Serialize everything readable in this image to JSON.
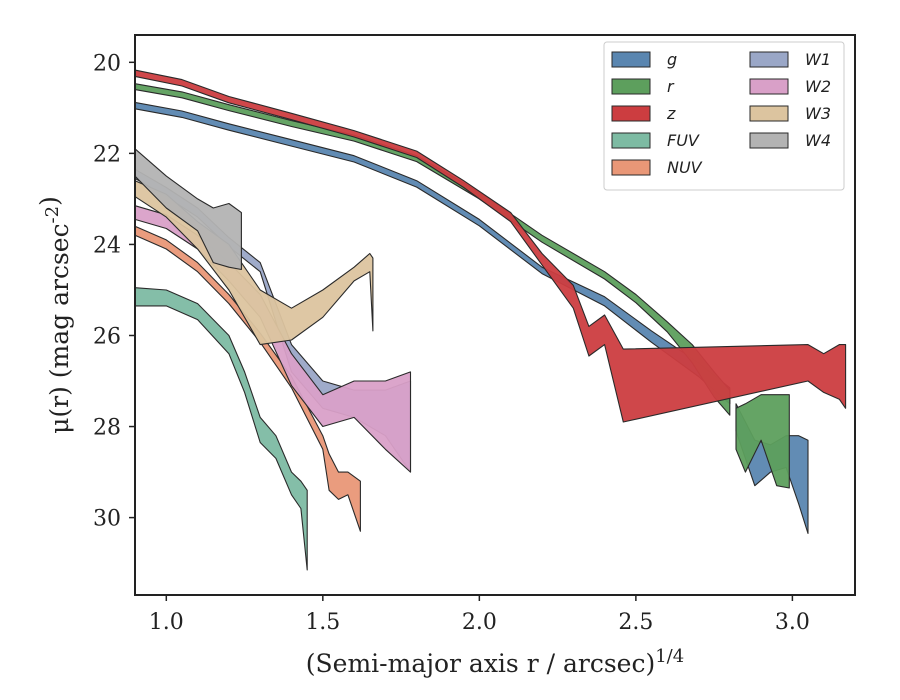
{
  "chart_data": {
    "type": "area",
    "xlabel": "(Semi-major axis r / arcsec)^{1/4}",
    "ylabel": "μ(r) (mag arcsec^{-2})",
    "xlim": [
      0.9,
      3.2
    ],
    "ylim": [
      31.7,
      19.4
    ],
    "y_inverted": true,
    "x_ticks": [
      "1.0",
      "1.5",
      "2.0",
      "2.5",
      "3.0"
    ],
    "y_ticks": [
      "20",
      "22",
      "24",
      "26",
      "28",
      "30"
    ],
    "grid": false,
    "legend": {
      "placement": "top-right",
      "columns": 2
    },
    "series": [
      {
        "name": "g",
        "color": "#5a86b0",
        "bands": [
          [
            [
              0.9,
              20.88,
              21.02
            ],
            [
              1.05,
              21.07,
              21.21
            ],
            [
              1.2,
              21.35,
              21.49
            ],
            [
              1.4,
              21.7,
              21.84
            ],
            [
              1.6,
              22.05,
              22.19
            ],
            [
              1.8,
              22.6,
              22.74
            ],
            [
              2.0,
              23.45,
              23.59
            ],
            [
              2.2,
              24.5,
              24.64
            ],
            [
              2.4,
              25.15,
              25.35
            ],
            [
              2.55,
              25.9,
              26.15
            ],
            [
              2.7,
              26.6,
              26.9
            ],
            [
              2.8,
              27.15,
              27.5
            ]
          ],
          [
            [
              2.82,
              27.5,
              28.1
            ],
            [
              2.88,
              28.3,
              29.3
            ],
            [
              2.93,
              28.4,
              29.0
            ],
            [
              2.98,
              28.2,
              28.9
            ],
            [
              3.02,
              28.2,
              29.7
            ],
            [
              3.05,
              28.3,
              30.35
            ]
          ]
        ]
      },
      {
        "name": "r",
        "color": "#5d9f5d",
        "bands": [
          [
            [
              0.9,
              20.47,
              20.6
            ],
            [
              1.05,
              20.65,
              20.78
            ],
            [
              1.2,
              20.93,
              21.06
            ],
            [
              1.4,
              21.28,
              21.41
            ],
            [
              1.6,
              21.6,
              21.73
            ],
            [
              1.8,
              22.05,
              22.18
            ],
            [
              2.0,
              22.85,
              23.0
            ],
            [
              2.2,
              23.8,
              23.95
            ],
            [
              2.4,
              24.6,
              24.76
            ],
            [
              2.5,
              25.1,
              25.28
            ],
            [
              2.6,
              25.7,
              25.92
            ],
            [
              2.68,
              26.2,
              26.6
            ],
            [
              2.75,
              26.8,
              27.35
            ],
            [
              2.8,
              27.2,
              27.75
            ]
          ],
          [
            [
              2.82,
              27.6,
              28.5
            ],
            [
              2.85,
              27.5,
              29.0
            ],
            [
              2.9,
              27.3,
              28.3
            ],
            [
              2.95,
              27.3,
              29.3
            ],
            [
              2.99,
              27.3,
              29.35
            ]
          ]
        ]
      },
      {
        "name": "z",
        "color": "#cc3d40",
        "bands": [
          [
            [
              0.9,
              20.17,
              20.31
            ],
            [
              1.05,
              20.38,
              20.52
            ],
            [
              1.2,
              20.75,
              20.89
            ],
            [
              1.4,
              21.12,
              21.26
            ],
            [
              1.6,
              21.5,
              21.64
            ],
            [
              1.8,
              21.95,
              22.09
            ],
            [
              1.95,
              22.6,
              22.75
            ],
            [
              2.1,
              23.3,
              23.5
            ],
            [
              2.2,
              24.2,
              24.45
            ],
            [
              2.3,
              24.9,
              25.4
            ],
            [
              2.35,
              25.8,
              26.45
            ],
            [
              2.4,
              25.55,
              26.2
            ],
            [
              2.46,
              26.3,
              27.9
            ],
            [
              3.05,
              26.2,
              27.0
            ],
            [
              3.1,
              26.4,
              27.25
            ],
            [
              3.15,
              26.2,
              27.4
            ],
            [
              3.17,
              26.2,
              27.6
            ]
          ]
        ]
      },
      {
        "name": "FUV",
        "color": "#7dbba3",
        "bands": [
          [
            [
              0.9,
              24.95,
              25.35
            ],
            [
              1.0,
              25.0,
              25.35
            ],
            [
              1.1,
              25.3,
              25.65
            ],
            [
              1.2,
              26.0,
              26.4
            ],
            [
              1.25,
              26.8,
              27.25
            ],
            [
              1.3,
              27.8,
              28.35
            ],
            [
              1.35,
              28.2,
              28.7
            ],
            [
              1.4,
              29.0,
              29.5
            ],
            [
              1.43,
              29.2,
              29.8
            ],
            [
              1.45,
              29.4,
              31.15
            ]
          ]
        ]
      },
      {
        "name": "NUV",
        "color": "#e99777",
        "bands": [
          [
            [
              0.9,
              23.6,
              23.8
            ],
            [
              1.0,
              23.9,
              24.1
            ],
            [
              1.1,
              24.4,
              24.6
            ],
            [
              1.2,
              25.1,
              25.3
            ],
            [
              1.3,
              25.95,
              26.15
            ],
            [
              1.4,
              26.9,
              27.15
            ],
            [
              1.5,
              28.2,
              28.5
            ],
            [
              1.52,
              28.6,
              29.4
            ],
            [
              1.55,
              29.0,
              29.6
            ],
            [
              1.58,
              29.0,
              29.5
            ],
            [
              1.62,
              29.2,
              30.3
            ]
          ]
        ]
      },
      {
        "name": "W1",
        "color": "#9aa7c7",
        "bands": [
          [
            [
              0.9,
              22.35,
              22.55
            ],
            [
              1.0,
              22.75,
              22.95
            ],
            [
              1.1,
              23.2,
              23.4
            ],
            [
              1.2,
              23.85,
              24.05
            ],
            [
              1.3,
              24.4,
              24.6
            ],
            [
              1.4,
              26.2,
              26.8
            ],
            [
              1.5,
              27.0,
              27.6
            ],
            [
              1.6,
              27.2,
              27.8
            ],
            [
              1.7,
              27.2,
              28.2
            ],
            [
              1.78,
              27.0,
              29.0
            ]
          ]
        ]
      },
      {
        "name": "W2",
        "color": "#d9a0c8",
        "bands": [
          [
            [
              0.9,
              23.15,
              23.45
            ],
            [
              1.0,
              23.35,
              23.65
            ],
            [
              1.1,
              23.8,
              24.1
            ],
            [
              1.2,
              24.4,
              24.8
            ],
            [
              1.3,
              25.1,
              25.6
            ],
            [
              1.4,
              26.4,
              27.1
            ],
            [
              1.5,
              27.3,
              28.0
            ],
            [
              1.6,
              27.0,
              27.8
            ],
            [
              1.7,
              27.0,
              28.5
            ],
            [
              1.78,
              26.8,
              29.0
            ]
          ]
        ]
      },
      {
        "name": "W3",
        "color": "#dcc49f",
        "bands": [
          [
            [
              0.9,
              22.6,
              22.95
            ],
            [
              1.0,
              22.9,
              23.4
            ],
            [
              1.1,
              23.5,
              24.1
            ],
            [
              1.2,
              24.0,
              25.0
            ],
            [
              1.3,
              25.0,
              26.2
            ],
            [
              1.4,
              25.4,
              26.1
            ],
            [
              1.5,
              25.0,
              25.6
            ],
            [
              1.6,
              24.5,
              24.8
            ],
            [
              1.65,
              24.2,
              24.6
            ],
            [
              1.66,
              24.3,
              25.9
            ]
          ]
        ]
      },
      {
        "name": "W4",
        "color": "#b3b3b3",
        "bands": [
          [
            [
              0.9,
              21.9,
              22.5
            ],
            [
              1.0,
              22.5,
              23.2
            ],
            [
              1.1,
              23.0,
              23.7
            ],
            [
              1.15,
              23.2,
              24.4
            ],
            [
              1.2,
              23.1,
              24.5
            ],
            [
              1.24,
              23.3,
              24.55
            ]
          ]
        ]
      }
    ]
  }
}
